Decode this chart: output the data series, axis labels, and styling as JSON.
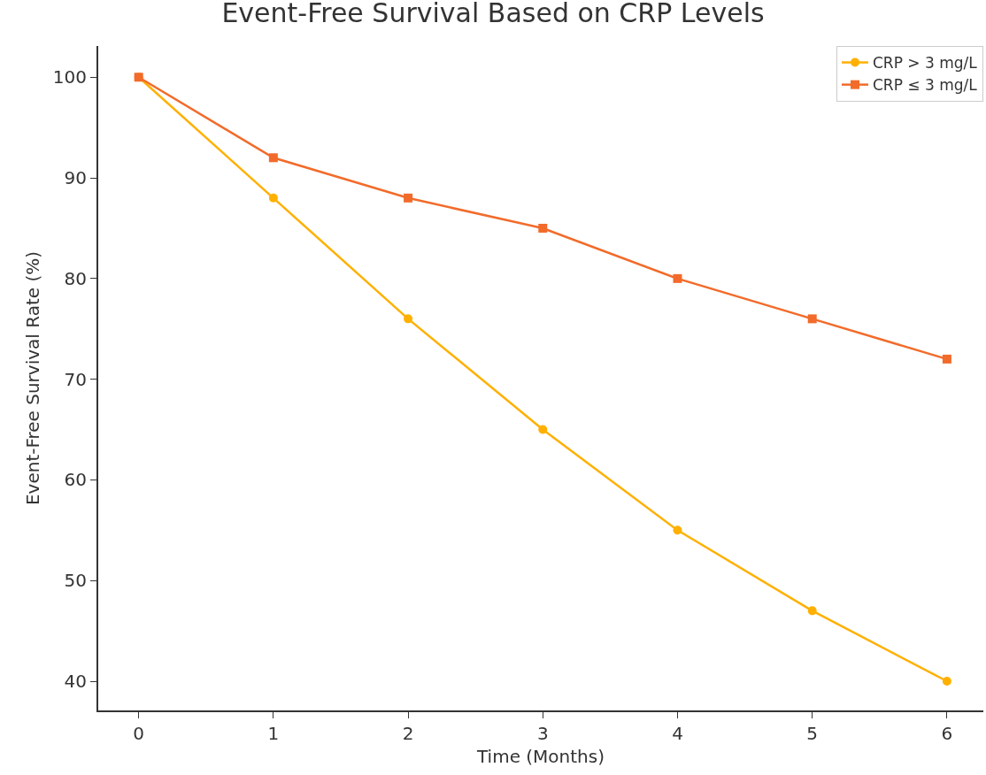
{
  "chart_data": {
    "type": "line",
    "title": "Event-Free Survival Based on CRP Levels",
    "xlabel": "Time (Months)",
    "ylabel": "Event-Free Survival Rate (%)",
    "x": [
      0,
      1,
      2,
      3,
      4,
      5,
      6
    ],
    "series": [
      {
        "name": "CRP > 3 mg/L",
        "color": "#ffb000",
        "marker": "circle",
        "values": [
          100,
          88,
          76,
          65,
          55,
          47,
          40
        ]
      },
      {
        "name": "CRP ≤ 3 mg/L",
        "color": "#f26b2a",
        "marker": "square",
        "values": [
          100,
          92,
          88,
          85,
          80,
          76,
          72
        ]
      }
    ],
    "xlim": [
      -0.3,
      6.27
    ],
    "xticks": [
      0,
      1,
      2,
      3,
      4,
      5,
      6
    ],
    "ylim": [
      37.1,
      103.1
    ],
    "yticks": [
      40,
      50,
      60,
      70,
      80,
      90,
      100
    ],
    "legend": "top right",
    "line_style": "solid"
  }
}
